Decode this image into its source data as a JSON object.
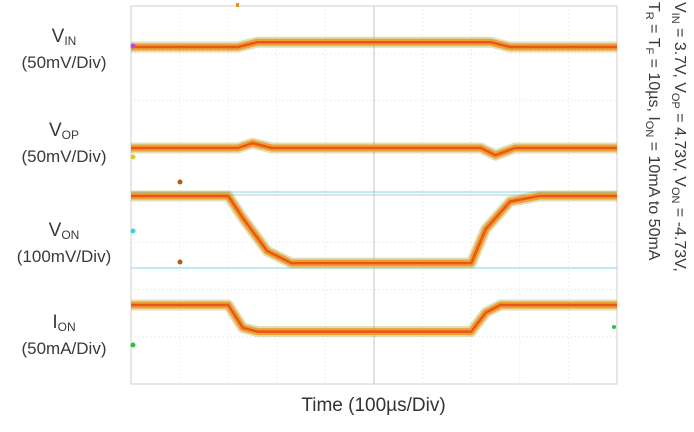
{
  "chart_data": {
    "type": "line",
    "title": "",
    "xlabel": "Time (100µs/Div)",
    "x_unit": "divisions",
    "xlim": [
      0,
      10
    ],
    "grid": true,
    "series": [
      {
        "name": "VIN",
        "scale": "(50mV/Div)",
        "color": "#e8561c",
        "band": "#f0a030",
        "x": [
          0,
          2.2,
          2.6,
          7.4,
          7.8,
          10
        ],
        "y": [
          0,
          0,
          0.12,
          0.12,
          0,
          0
        ]
      },
      {
        "name": "VOP",
        "scale": "(50mV/Div)",
        "color": "#e8561c",
        "band": "#f0a030",
        "x": [
          0,
          2.2,
          2.5,
          2.9,
          7.2,
          7.5,
          7.9,
          10
        ],
        "y": [
          0,
          0,
          0.12,
          0,
          0,
          -0.18,
          0,
          0
        ]
      },
      {
        "name": "VON",
        "scale": "(100mV/Div)",
        "color": "#e8561c",
        "band": "#f0a030",
        "x": [
          0,
          2.0,
          2.3,
          2.8,
          3.3,
          7.0,
          7.3,
          7.8,
          8.4,
          10
        ],
        "y": [
          0,
          0,
          -0.4,
          -1.0,
          -1.22,
          -1.22,
          -0.6,
          -0.1,
          0,
          0
        ]
      },
      {
        "name": "ION",
        "scale": "(50mA/Div)",
        "color": "#e8561c",
        "band": "#f0a030",
        "x": [
          0,
          2.0,
          2.3,
          2.6,
          7.0,
          7.3,
          7.6,
          10
        ],
        "y": [
          0,
          0,
          -0.6,
          -0.7,
          -0.7,
          -0.2,
          0,
          0
        ]
      }
    ]
  },
  "labels": {
    "vin": {
      "name": "V",
      "sub": "IN",
      "scale": "(50mV/Div)"
    },
    "vop": {
      "name": "V",
      "sub": "OP",
      "scale": "(50mV/Div)"
    },
    "von": {
      "name": "V",
      "sub": "ON",
      "scale": "(100mV/Div)"
    },
    "ion": {
      "name": "I",
      "sub": "ON",
      "scale": "(50mA/Div)"
    }
  },
  "conditions": {
    "line1_a": "V",
    "line1_a_sub": "IN",
    "line1_b": " = 3.7V, V",
    "line1_b_sub": "OP",
    "line1_c": " = 4.73V, V",
    "line1_c_sub": "ON",
    "line1_d": " = -4.73V,",
    "line2_a": "T",
    "line2_a_sub": "R",
    "line2_b": " = T",
    "line2_b_sub": "F",
    "line2_c": " = 10µs, I",
    "line2_c_sub": "ON",
    "line2_d": " = 10mA to 50mA"
  },
  "colors": {
    "trace": "#e8561c",
    "trace_band": "#f0a030",
    "trace_noise": "#9aa23a",
    "grid": "#d8d8d8",
    "cursor": "#7fd8e8",
    "border": "#cfcfcf"
  }
}
